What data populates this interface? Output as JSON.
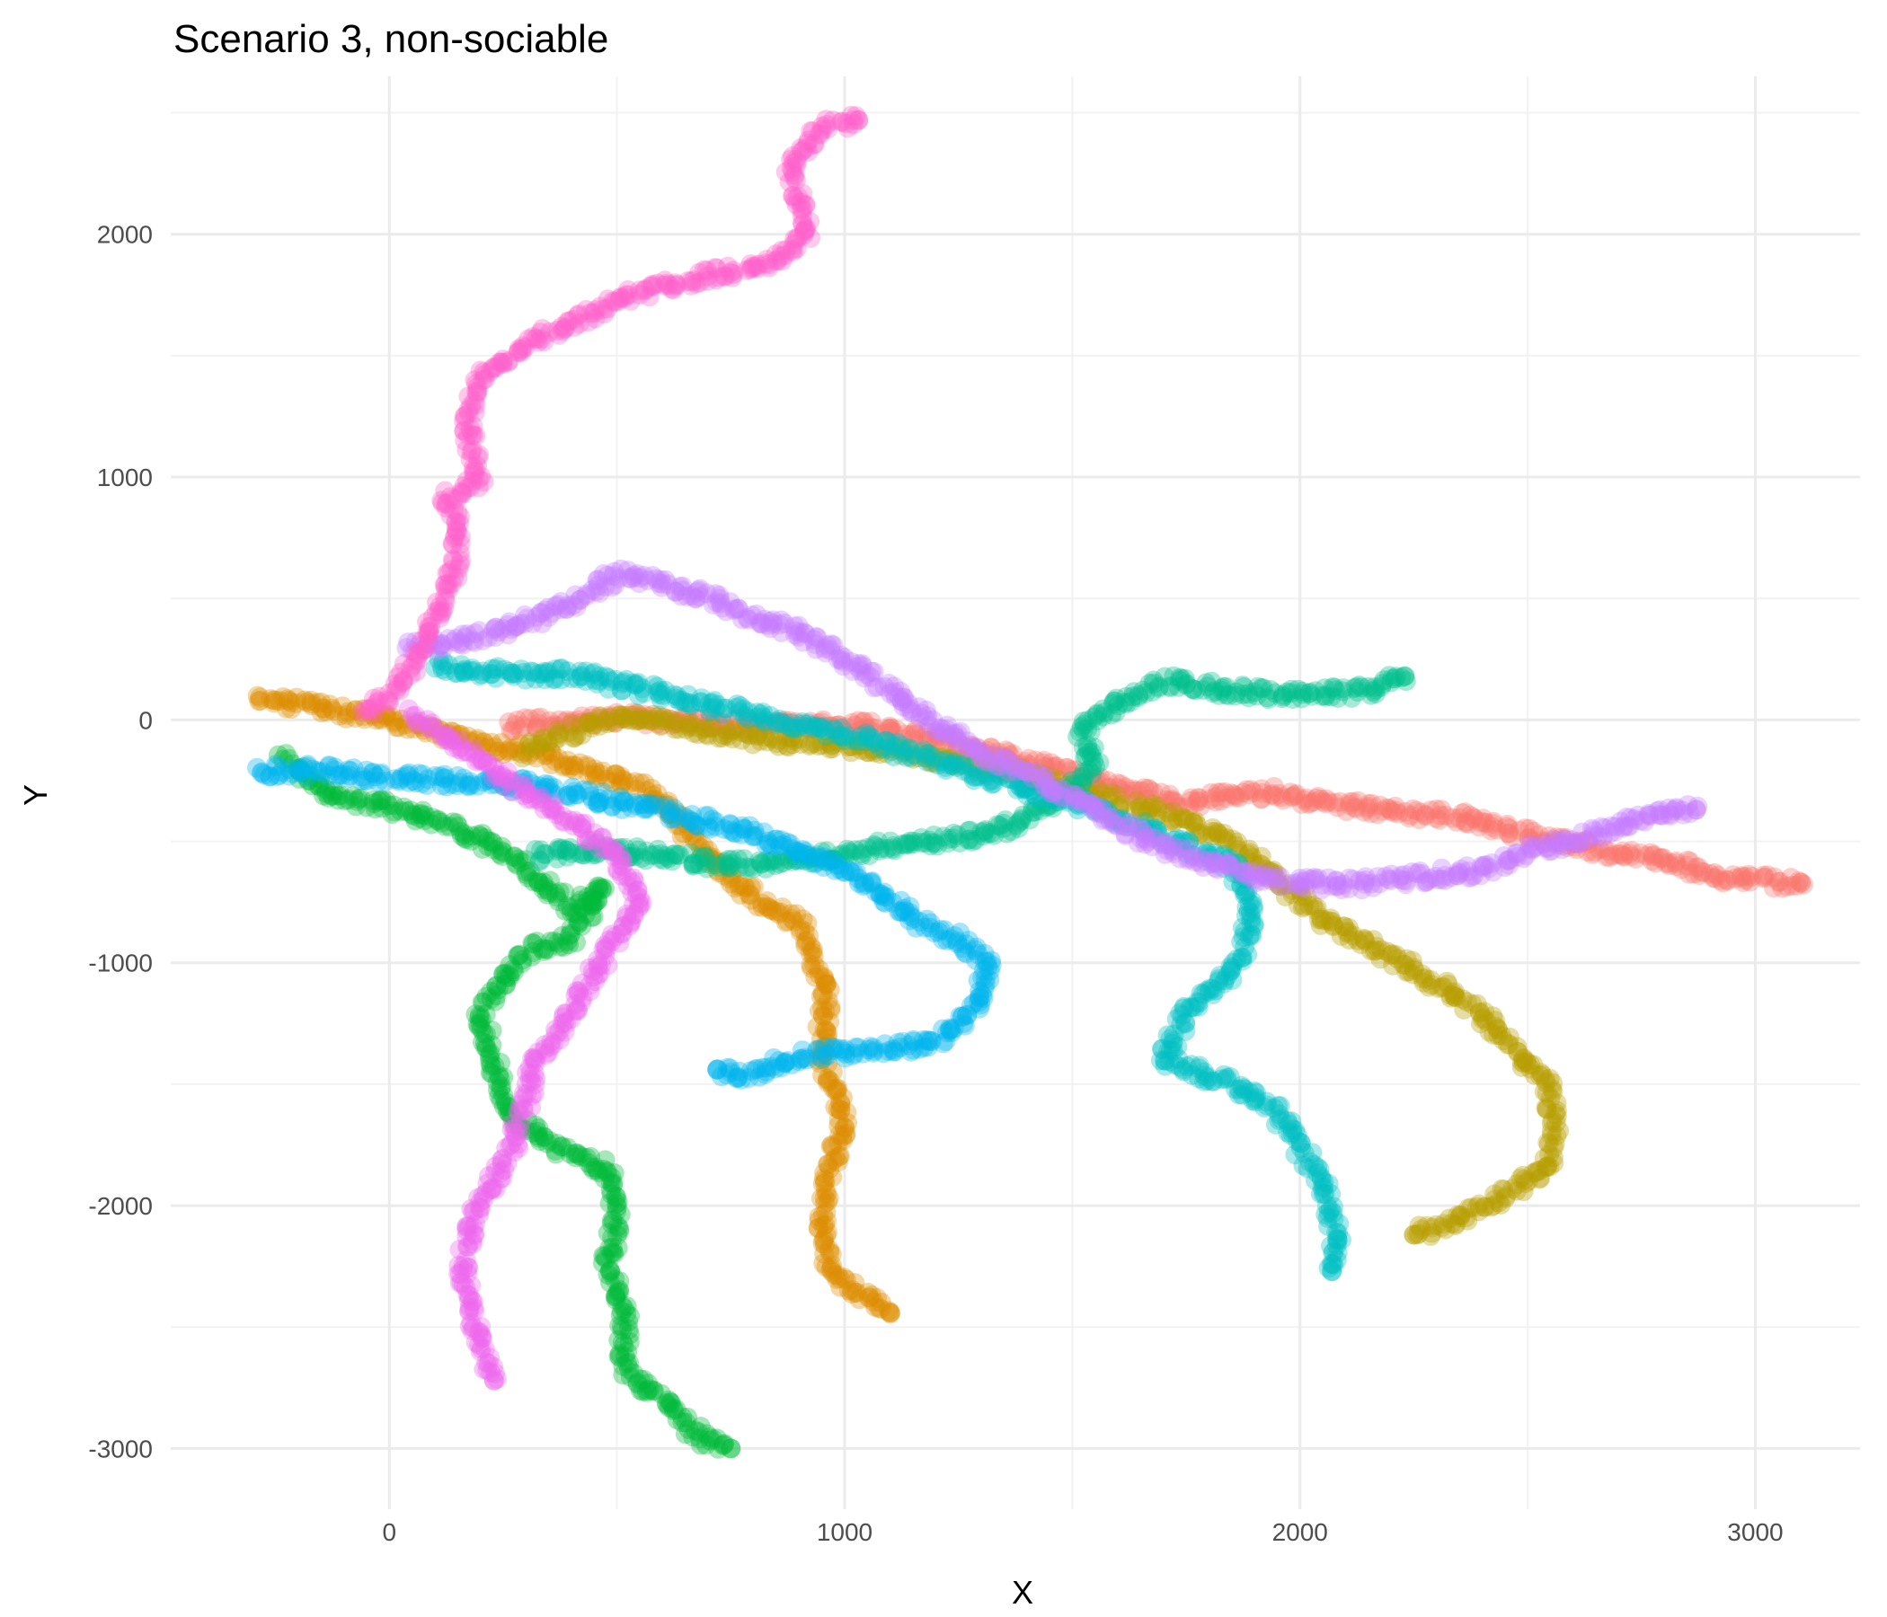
{
  "chart_data": {
    "type": "scatter",
    "title": "Scenario 3, non-sociable",
    "xlabel": "X",
    "ylabel": "Y",
    "xlim": [
      -480,
      3230
    ],
    "ylim": [
      -3250,
      2650
    ],
    "x_ticks": [
      0,
      1000,
      2000,
      3000
    ],
    "x_tick_labels": [
      "0",
      "1000",
      "2000",
      "3000"
    ],
    "y_ticks": [
      -3000,
      -2000,
      -1000,
      0,
      1000,
      2000
    ],
    "y_tick_labels": [
      "-3000",
      "-2000",
      "-1000",
      "0",
      "1000",
      "2000"
    ],
    "grid": true,
    "legend": "none",
    "series": [
      {
        "color": "#F8766D",
        "points": [
          [
            260,
            -20
          ],
          [
            400,
            -10
          ],
          [
            550,
            10
          ],
          [
            700,
            -10
          ],
          [
            850,
            -30
          ],
          [
            1000,
            -20
          ],
          [
            1150,
            -60
          ],
          [
            1300,
            -120
          ],
          [
            1450,
            -200
          ],
          [
            1600,
            -280
          ],
          [
            1750,
            -340
          ],
          [
            1850,
            -310
          ],
          [
            1950,
            -300
          ],
          [
            2050,
            -340
          ],
          [
            2200,
            -380
          ],
          [
            2350,
            -400
          ],
          [
            2500,
            -470
          ],
          [
            2650,
            -530
          ],
          [
            2800,
            -570
          ],
          [
            2950,
            -660
          ],
          [
            3100,
            -670
          ]
        ]
      },
      {
        "color": "#DE8C00",
        "points": [
          [
            -290,
            100
          ],
          [
            -150,
            50
          ],
          [
            0,
            0
          ],
          [
            150,
            -70
          ],
          [
            300,
            -130
          ],
          [
            450,
            -210
          ],
          [
            550,
            -270
          ],
          [
            620,
            -380
          ],
          [
            700,
            -560
          ],
          [
            800,
            -730
          ],
          [
            900,
            -830
          ],
          [
            960,
            -1100
          ],
          [
            950,
            -1400
          ],
          [
            1000,
            -1650
          ],
          [
            970,
            -1850
          ],
          [
            950,
            -2050
          ],
          [
            960,
            -2250
          ],
          [
            1020,
            -2350
          ],
          [
            1100,
            -2440
          ]
        ]
      },
      {
        "color": "#B79F00",
        "points": [
          [
            300,
            -130
          ],
          [
            400,
            -50
          ],
          [
            500,
            20
          ],
          [
            650,
            -30
          ],
          [
            800,
            -80
          ],
          [
            950,
            -100
          ],
          [
            1100,
            -130
          ],
          [
            1250,
            -180
          ],
          [
            1400,
            -230
          ],
          [
            1550,
            -310
          ],
          [
            1700,
            -380
          ],
          [
            1850,
            -500
          ],
          [
            1950,
            -650
          ],
          [
            2050,
            -820
          ],
          [
            2150,
            -920
          ],
          [
            2250,
            -1030
          ],
          [
            2350,
            -1150
          ],
          [
            2450,
            -1300
          ],
          [
            2550,
            -1520
          ],
          [
            2560,
            -1700
          ],
          [
            2540,
            -1850
          ],
          [
            2450,
            -1950
          ],
          [
            2350,
            -2050
          ],
          [
            2250,
            -2120
          ]
        ]
      },
      {
        "color": "#00BA38",
        "points": [
          [
            -230,
            -150
          ],
          [
            -130,
            -320
          ],
          [
            0,
            -360
          ],
          [
            130,
            -440
          ],
          [
            260,
            -540
          ],
          [
            330,
            -670
          ],
          [
            400,
            -780
          ],
          [
            470,
            -690
          ],
          [
            400,
            -900
          ],
          [
            300,
            -950
          ],
          [
            200,
            -1200
          ],
          [
            230,
            -1400
          ],
          [
            250,
            -1600
          ],
          [
            350,
            -1750
          ],
          [
            480,
            -1850
          ],
          [
            500,
            -2050
          ],
          [
            480,
            -2250
          ],
          [
            520,
            -2450
          ],
          [
            510,
            -2650
          ],
          [
            600,
            -2800
          ],
          [
            680,
            -2950
          ],
          [
            750,
            -3000
          ]
        ]
      },
      {
        "color": "#00C08B",
        "points": [
          [
            320,
            -560
          ],
          [
            450,
            -530
          ],
          [
            600,
            -560
          ],
          [
            750,
            -600
          ],
          [
            900,
            -580
          ],
          [
            1050,
            -530
          ],
          [
            1200,
            -500
          ],
          [
            1350,
            -450
          ],
          [
            1450,
            -350
          ],
          [
            1550,
            -200
          ],
          [
            1520,
            -30
          ],
          [
            1600,
            60
          ],
          [
            1700,
            160
          ],
          [
            1850,
            120
          ],
          [
            2000,
            100
          ],
          [
            2150,
            120
          ],
          [
            2230,
            180
          ]
        ]
      },
      {
        "color": "#00BFC4",
        "points": [
          [
            100,
            230
          ],
          [
            250,
            190
          ],
          [
            400,
            190
          ],
          [
            550,
            130
          ],
          [
            700,
            60
          ],
          [
            850,
            0
          ],
          [
            1000,
            -60
          ],
          [
            1150,
            -140
          ],
          [
            1300,
            -230
          ],
          [
            1500,
            -330
          ],
          [
            1700,
            -480
          ],
          [
            1850,
            -590
          ],
          [
            1900,
            -800
          ],
          [
            1850,
            -1050
          ],
          [
            1750,
            -1200
          ],
          [
            1700,
            -1400
          ],
          [
            1850,
            -1500
          ],
          [
            1950,
            -1620
          ],
          [
            2050,
            -1900
          ],
          [
            2080,
            -2130
          ],
          [
            2070,
            -2270
          ]
        ]
      },
      {
        "color": "#00B4EF",
        "points": [
          [
            -290,
            -210
          ],
          [
            -150,
            -210
          ],
          [
            0,
            -240
          ],
          [
            150,
            -250
          ],
          [
            300,
            -270
          ],
          [
            450,
            -320
          ],
          [
            600,
            -380
          ],
          [
            750,
            -440
          ],
          [
            900,
            -540
          ],
          [
            1050,
            -680
          ],
          [
            1150,
            -820
          ],
          [
            1250,
            -900
          ],
          [
            1320,
            -1020
          ],
          [
            1280,
            -1200
          ],
          [
            1200,
            -1330
          ],
          [
            1050,
            -1360
          ],
          [
            900,
            -1380
          ],
          [
            800,
            -1460
          ],
          [
            720,
            -1440
          ]
        ]
      },
      {
        "color": "#C77CFF",
        "points": [
          [
            40,
            300
          ],
          [
            150,
            320
          ],
          [
            300,
            400
          ],
          [
            400,
            480
          ],
          [
            500,
            600
          ],
          [
            600,
            560
          ],
          [
            700,
            500
          ],
          [
            800,
            420
          ],
          [
            900,
            360
          ],
          [
            1000,
            260
          ],
          [
            1100,
            120
          ],
          [
            1200,
            -10
          ],
          [
            1300,
            -130
          ],
          [
            1400,
            -220
          ],
          [
            1500,
            -320
          ],
          [
            1650,
            -480
          ],
          [
            1800,
            -590
          ],
          [
            1950,
            -660
          ],
          [
            2100,
            -680
          ],
          [
            2250,
            -650
          ],
          [
            2400,
            -620
          ],
          [
            2500,
            -540
          ],
          [
            2650,
            -470
          ],
          [
            2800,
            -380
          ],
          [
            2870,
            -370
          ]
        ]
      },
      {
        "color": "#FF61CC",
        "points": [
          [
            -60,
            20
          ],
          [
            0,
            100
          ],
          [
            60,
            250
          ],
          [
            100,
            400
          ],
          [
            140,
            600
          ],
          [
            150,
            800
          ],
          [
            120,
            900
          ],
          [
            200,
            1000
          ],
          [
            170,
            1200
          ],
          [
            200,
            1400
          ],
          [
            300,
            1550
          ],
          [
            450,
            1680
          ],
          [
            550,
            1760
          ],
          [
            700,
            1830
          ],
          [
            850,
            1880
          ],
          [
            920,
            2000
          ],
          [
            900,
            2150
          ],
          [
            880,
            2300
          ],
          [
            960,
            2450
          ],
          [
            1030,
            2470
          ]
        ]
      },
      {
        "color": "#ED68ED",
        "points": [
          [
            50,
            20
          ],
          [
            150,
            -100
          ],
          [
            300,
            -300
          ],
          [
            400,
            -420
          ],
          [
            500,
            -550
          ],
          [
            550,
            -750
          ],
          [
            480,
            -950
          ],
          [
            400,
            -1200
          ],
          [
            320,
            -1400
          ],
          [
            300,
            -1600
          ],
          [
            260,
            -1800
          ],
          [
            180,
            -2050
          ],
          [
            160,
            -2300
          ],
          [
            200,
            -2550
          ],
          [
            230,
            -2720
          ]
        ]
      }
    ]
  }
}
